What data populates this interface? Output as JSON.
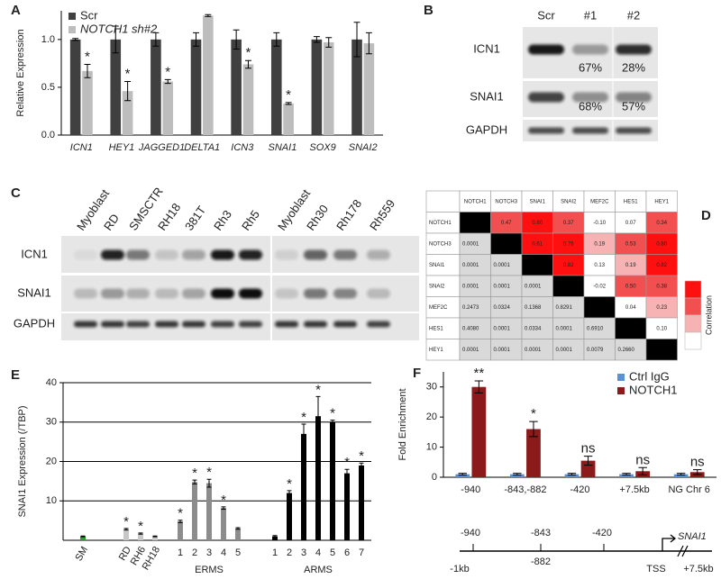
{
  "panel_labels": [
    "A",
    "B",
    "C",
    "D",
    "E",
    "F"
  ],
  "chart_data": [
    {
      "type": "bar",
      "ylabel": "Relative Expression",
      "categories": [
        "ICN1",
        "HEY1",
        "JAGGED1",
        "DELTA1",
        "ICN3",
        "SNAI1",
        "SOX9",
        "SNAI2"
      ],
      "series": [
        {
          "name": "Scr",
          "color": "#404040",
          "values": [
            1.0,
            1.0,
            1.0,
            1.0,
            1.0,
            1.0,
            1.0,
            1.0
          ],
          "errors": [
            0.01,
            0.14,
            0.07,
            0.07,
            0.1,
            0.07,
            0.03,
            0.18
          ],
          "annotations": [
            null,
            null,
            null,
            null,
            null,
            null,
            null,
            null
          ]
        },
        {
          "name": "NOTCH1 sh#2",
          "color": "#bdbdbd",
          "values": [
            0.67,
            0.46,
            0.56,
            1.25,
            0.74,
            0.33,
            0.97,
            0.96
          ],
          "errors": [
            0.07,
            0.1,
            0.02,
            0.01,
            0.04,
            0.01,
            0.05,
            0.11
          ],
          "annotations": [
            "*",
            "*",
            "*",
            null,
            "*",
            "*",
            null,
            null
          ]
        }
      ],
      "ylim": [
        0,
        1.3
      ],
      "yticks": [
        {
          "value": 0,
          "label": "0.0"
        },
        {
          "value": 0.5,
          "label": "0.5"
        },
        {
          "value": 1,
          "label": "1.0"
        }
      ],
      "grid": false,
      "legend": "upper left"
    },
    {
      "type": "bar",
      "ylabel": "SNAI1 Expression (/TBP)",
      "groups": [
        {
          "label": null,
          "categories": [
            "SM"
          ],
          "values": [
            1.0
          ],
          "errors": [
            0.1
          ],
          "color": "#2ca02c",
          "annotations": [
            null
          ]
        },
        {
          "label": null,
          "categories": [
            "RD",
            "RH6",
            "RH18"
          ],
          "values": [
            2.8,
            1.7,
            1.0
          ],
          "errors": [
            0.2,
            0.15,
            0.1
          ],
          "color": "#c8c8c8",
          "annotations": [
            "*",
            "*",
            null
          ]
        },
        {
          "label": "ERMS",
          "categories": [
            "1",
            "2",
            "3",
            "4",
            "5"
          ],
          "values": [
            4.8,
            14.8,
            14.5,
            8.2,
            3.0
          ],
          "errors": [
            0.3,
            0.5,
            1.0,
            0.3,
            0.2
          ],
          "color": "#8c8c8c",
          "annotations": [
            "*",
            "*",
            "*",
            "*",
            null
          ]
        },
        {
          "label": "ARMS",
          "categories": [
            "1",
            "2",
            "3",
            "4",
            "5",
            "6",
            "7"
          ],
          "values": [
            1.0,
            12.0,
            27.0,
            31.5,
            30.0,
            17.0,
            19.0
          ],
          "errors": [
            0.2,
            0.6,
            2.5,
            5.0,
            0.5,
            1.0,
            0.6
          ],
          "color": "#000000",
          "annotations": [
            null,
            "*",
            "*",
            "*",
            "*",
            "*",
            "*"
          ]
        }
      ],
      "ylim": [
        0,
        40
      ],
      "yticks": [
        10,
        20,
        30,
        40
      ],
      "grid": true
    },
    {
      "type": "bar",
      "ylabel": "Fold Enrichment",
      "categories": [
        "-940",
        "-843,-882",
        "-420",
        "+7.5kb",
        "NG Chr 6"
      ],
      "series": [
        {
          "name": "Ctrl IgG",
          "color": "#5b8fd6",
          "values": [
            1.0,
            1.0,
            1.0,
            1.0,
            1.0
          ],
          "errors": [
            0.3,
            0.3,
            0.3,
            0.3,
            0.3
          ],
          "annotations": [
            null,
            null,
            null,
            null,
            null
          ]
        },
        {
          "name": "NOTCH1",
          "color": "#8b1a1a",
          "values": [
            30.0,
            16.0,
            5.5,
            2.0,
            1.7
          ],
          "errors": [
            2.0,
            2.5,
            1.5,
            1.2,
            0.8
          ],
          "annotations": [
            "**",
            "*",
            "ns",
            "ns",
            "ns"
          ]
        }
      ],
      "ylim": [
        0,
        35
      ],
      "yticks": [
        0,
        10,
        20,
        30
      ],
      "grid": false,
      "legend": "upper right"
    }
  ],
  "blot_b": {
    "columns": [
      "Scr",
      "#1",
      "#2"
    ],
    "rows": [
      {
        "label": "ICN1",
        "quant": [
          "67%",
          "28%"
        ]
      },
      {
        "label": "SNAI1",
        "quant": [
          "68%",
          "57%"
        ]
      },
      {
        "label": "GAPDH",
        "quant": []
      }
    ]
  },
  "blot_c": {
    "lanes": [
      "Myoblast",
      "RD",
      "SMSCTR",
      "RH18",
      "381T",
      "Rh3",
      "Rh5",
      "Myoblast",
      "Rh30",
      "Rh178",
      "Rh559"
    ],
    "rows": [
      "ICN1",
      "SNAI1",
      "GAPDH"
    ]
  },
  "correlation_table": {
    "columns": [
      "NOTCH1",
      "NOTCH3",
      "SNAI1",
      "SNAI2",
      "MEF2C",
      "HES1",
      "HEY1"
    ],
    "rows": [
      {
        "label": "NOTCH1",
        "cells": [
          null,
          "0.47",
          "0.80",
          "0.37",
          "-0.10",
          "0.07",
          "0.34"
        ]
      },
      {
        "label": "NOTCH3",
        "cells": [
          "0.0001",
          null,
          "0.61",
          "0.76",
          "0.19",
          "0.53",
          "0.80"
        ]
      },
      {
        "label": "SNAI1",
        "cells": [
          "0.0001",
          "0.0001",
          null,
          "0.82",
          "0.13",
          "0.19",
          "0.82"
        ]
      },
      {
        "label": "SNAI2",
        "cells": [
          "0.0001",
          "0.0001",
          "0.0001",
          null,
          "-0.02",
          "0.50",
          "0.38"
        ]
      },
      {
        "label": "MEF2C",
        "cells": [
          "0.2473",
          "0.0324",
          "0.1368",
          "0.8291",
          null,
          "0.04",
          "0.23"
        ]
      },
      {
        "label": "HES1",
        "cells": [
          "0.4080",
          "0.0001",
          "0.0334",
          "0.0001",
          "0.6910",
          null,
          "0.10"
        ]
      },
      {
        "label": "HEY1",
        "cells": [
          "0.0001",
          "0.0001",
          "0.0001",
          "0.0001",
          "0.0079",
          "0.2660",
          null
        ]
      }
    ],
    "legend_title": "Correlation"
  },
  "gene_map": {
    "sites": [
      "-940",
      "-843",
      "-882",
      "-420"
    ],
    "start": "-1kb",
    "tss": "TSS",
    "end": "+7.5kb",
    "gene": "SNAI1"
  }
}
